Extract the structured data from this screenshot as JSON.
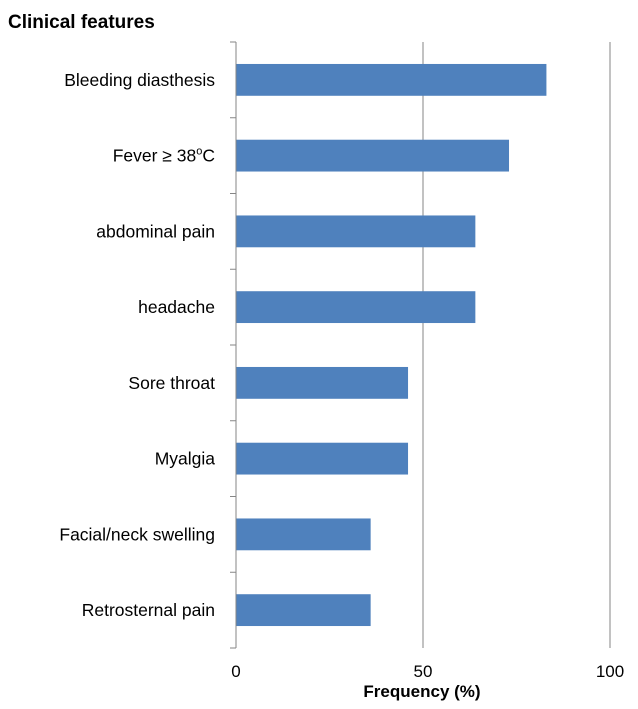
{
  "chart_data": {
    "type": "bar",
    "orientation": "horizontal",
    "title": "Clinical features",
    "xlabel": "Frequency (%)",
    "ylabel": "",
    "xlim": [
      0,
      100
    ],
    "x_ticks": [
      "0",
      "50",
      "100"
    ],
    "grid": true,
    "legend": "none",
    "bar_color": "#4f81bd",
    "categories": [
      "Bleeding diasthesis",
      "Fever ≥ 38",
      "abdominal pain",
      "headache",
      "Sore throat",
      "Myalgia",
      "Facial/neck swelling",
      "Retrosternal pain"
    ],
    "values": [
      83,
      73,
      64,
      64,
      46,
      46,
      36,
      36
    ]
  }
}
